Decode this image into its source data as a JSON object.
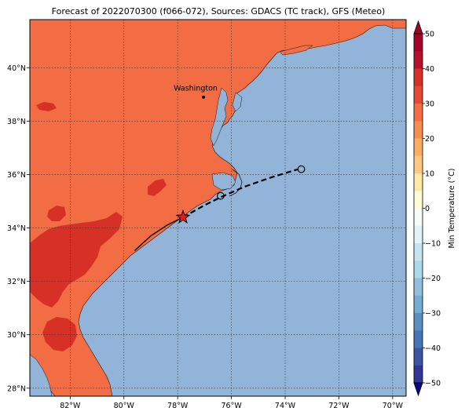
{
  "title": "Forecast of 2022070300 (f066-072), Sources: GDACS (TC track), GFS (Meteo)",
  "map": {
    "lon_range": [
      -83.5,
      -69.5
    ],
    "lat_range": [
      27.7,
      41.8
    ],
    "lon_ticks": [
      {
        "value": -82,
        "label": "82°W"
      },
      {
        "value": -80,
        "label": "80°W"
      },
      {
        "value": -78,
        "label": "78°W"
      },
      {
        "value": -76,
        "label": "76°W"
      },
      {
        "value": -74,
        "label": "74°W"
      },
      {
        "value": -72,
        "label": "72°W"
      },
      {
        "value": -70,
        "label": "70°W"
      }
    ],
    "lat_ticks": [
      {
        "value": 28,
        "label": "28°N"
      },
      {
        "value": 30,
        "label": "30°N"
      },
      {
        "value": 32,
        "label": "32°N"
      },
      {
        "value": 34,
        "label": "34°N"
      },
      {
        "value": 36,
        "label": "36°N"
      },
      {
        "value": 38,
        "label": "38°N"
      },
      {
        "value": 40,
        "label": "40°N"
      }
    ],
    "grid": "dotted",
    "city": {
      "name": "Washington",
      "lon": -77.04,
      "lat": 38.9
    },
    "colors": {
      "ocean": "#91b4d8",
      "land_20_30": "#f26d43",
      "land_30_40": "#d73027",
      "coast": "#000000"
    }
  },
  "track": {
    "past": [
      [
        -79.6,
        33.15
      ],
      [
        -79.0,
        33.7
      ],
      [
        -78.4,
        34.1
      ],
      [
        -77.8,
        34.4
      ]
    ],
    "forecast": [
      [
        -77.8,
        34.4
      ],
      [
        -77.0,
        34.85
      ],
      [
        -76.4,
        35.15
      ],
      [
        -75.5,
        35.55
      ],
      [
        -74.5,
        35.9
      ],
      [
        -73.5,
        36.2
      ]
    ],
    "current_position": {
      "lon": -77.8,
      "lat": 34.4
    },
    "forecast_points": [
      {
        "lon": -76.4,
        "lat": 35.2
      },
      {
        "lon": -73.4,
        "lat": 36.2
      }
    ]
  },
  "colorbar": {
    "label": "Min Temperature (°C)",
    "range": [
      -50,
      50
    ],
    "ticks": [
      {
        "value": 50,
        "label": "50"
      },
      {
        "value": 40,
        "label": "40"
      },
      {
        "value": 30,
        "label": "30"
      },
      {
        "value": 20,
        "label": "20"
      },
      {
        "value": 10,
        "label": "10"
      },
      {
        "value": 0,
        "label": "0"
      },
      {
        "value": -10,
        "label": "−10"
      },
      {
        "value": -20,
        "label": "−20"
      },
      {
        "value": -30,
        "label": "−30"
      },
      {
        "value": -40,
        "label": "−40"
      },
      {
        "value": -50,
        "label": "−50"
      }
    ],
    "bands": [
      {
        "from": 45,
        "to": 50,
        "color": "#a50026"
      },
      {
        "from": 40,
        "to": 45,
        "color": "#b8102a"
      },
      {
        "from": 35,
        "to": 40,
        "color": "#d73027"
      },
      {
        "from": 30,
        "to": 35,
        "color": "#e34a33"
      },
      {
        "from": 25,
        "to": 30,
        "color": "#f26d43"
      },
      {
        "from": 20,
        "to": 25,
        "color": "#f88d52"
      },
      {
        "from": 15,
        "to": 20,
        "color": "#fdae61"
      },
      {
        "from": 10,
        "to": 15,
        "color": "#fec980"
      },
      {
        "from": 5,
        "to": 10,
        "color": "#ffe7a4"
      },
      {
        "from": 0,
        "to": 5,
        "color": "#fffbd2"
      },
      {
        "from": -5,
        "to": 0,
        "color": "#f5fbf5"
      },
      {
        "from": -10,
        "to": -5,
        "color": "#e0f3f8"
      },
      {
        "from": -15,
        "to": -10,
        "color": "#c5e4ef"
      },
      {
        "from": -20,
        "to": -15,
        "color": "#abd9e9"
      },
      {
        "from": -25,
        "to": -20,
        "color": "#91bfdb"
      },
      {
        "from": -30,
        "to": -25,
        "color": "#74add1"
      },
      {
        "from": -35,
        "to": -30,
        "color": "#5b8fc2"
      },
      {
        "from": -40,
        "to": -35,
        "color": "#4575b4"
      },
      {
        "from": -45,
        "to": -40,
        "color": "#3a56a3"
      },
      {
        "from": -50,
        "to": -45,
        "color": "#313695"
      }
    ],
    "over_color": "#a50026",
    "under_color": "#0a0a80"
  }
}
